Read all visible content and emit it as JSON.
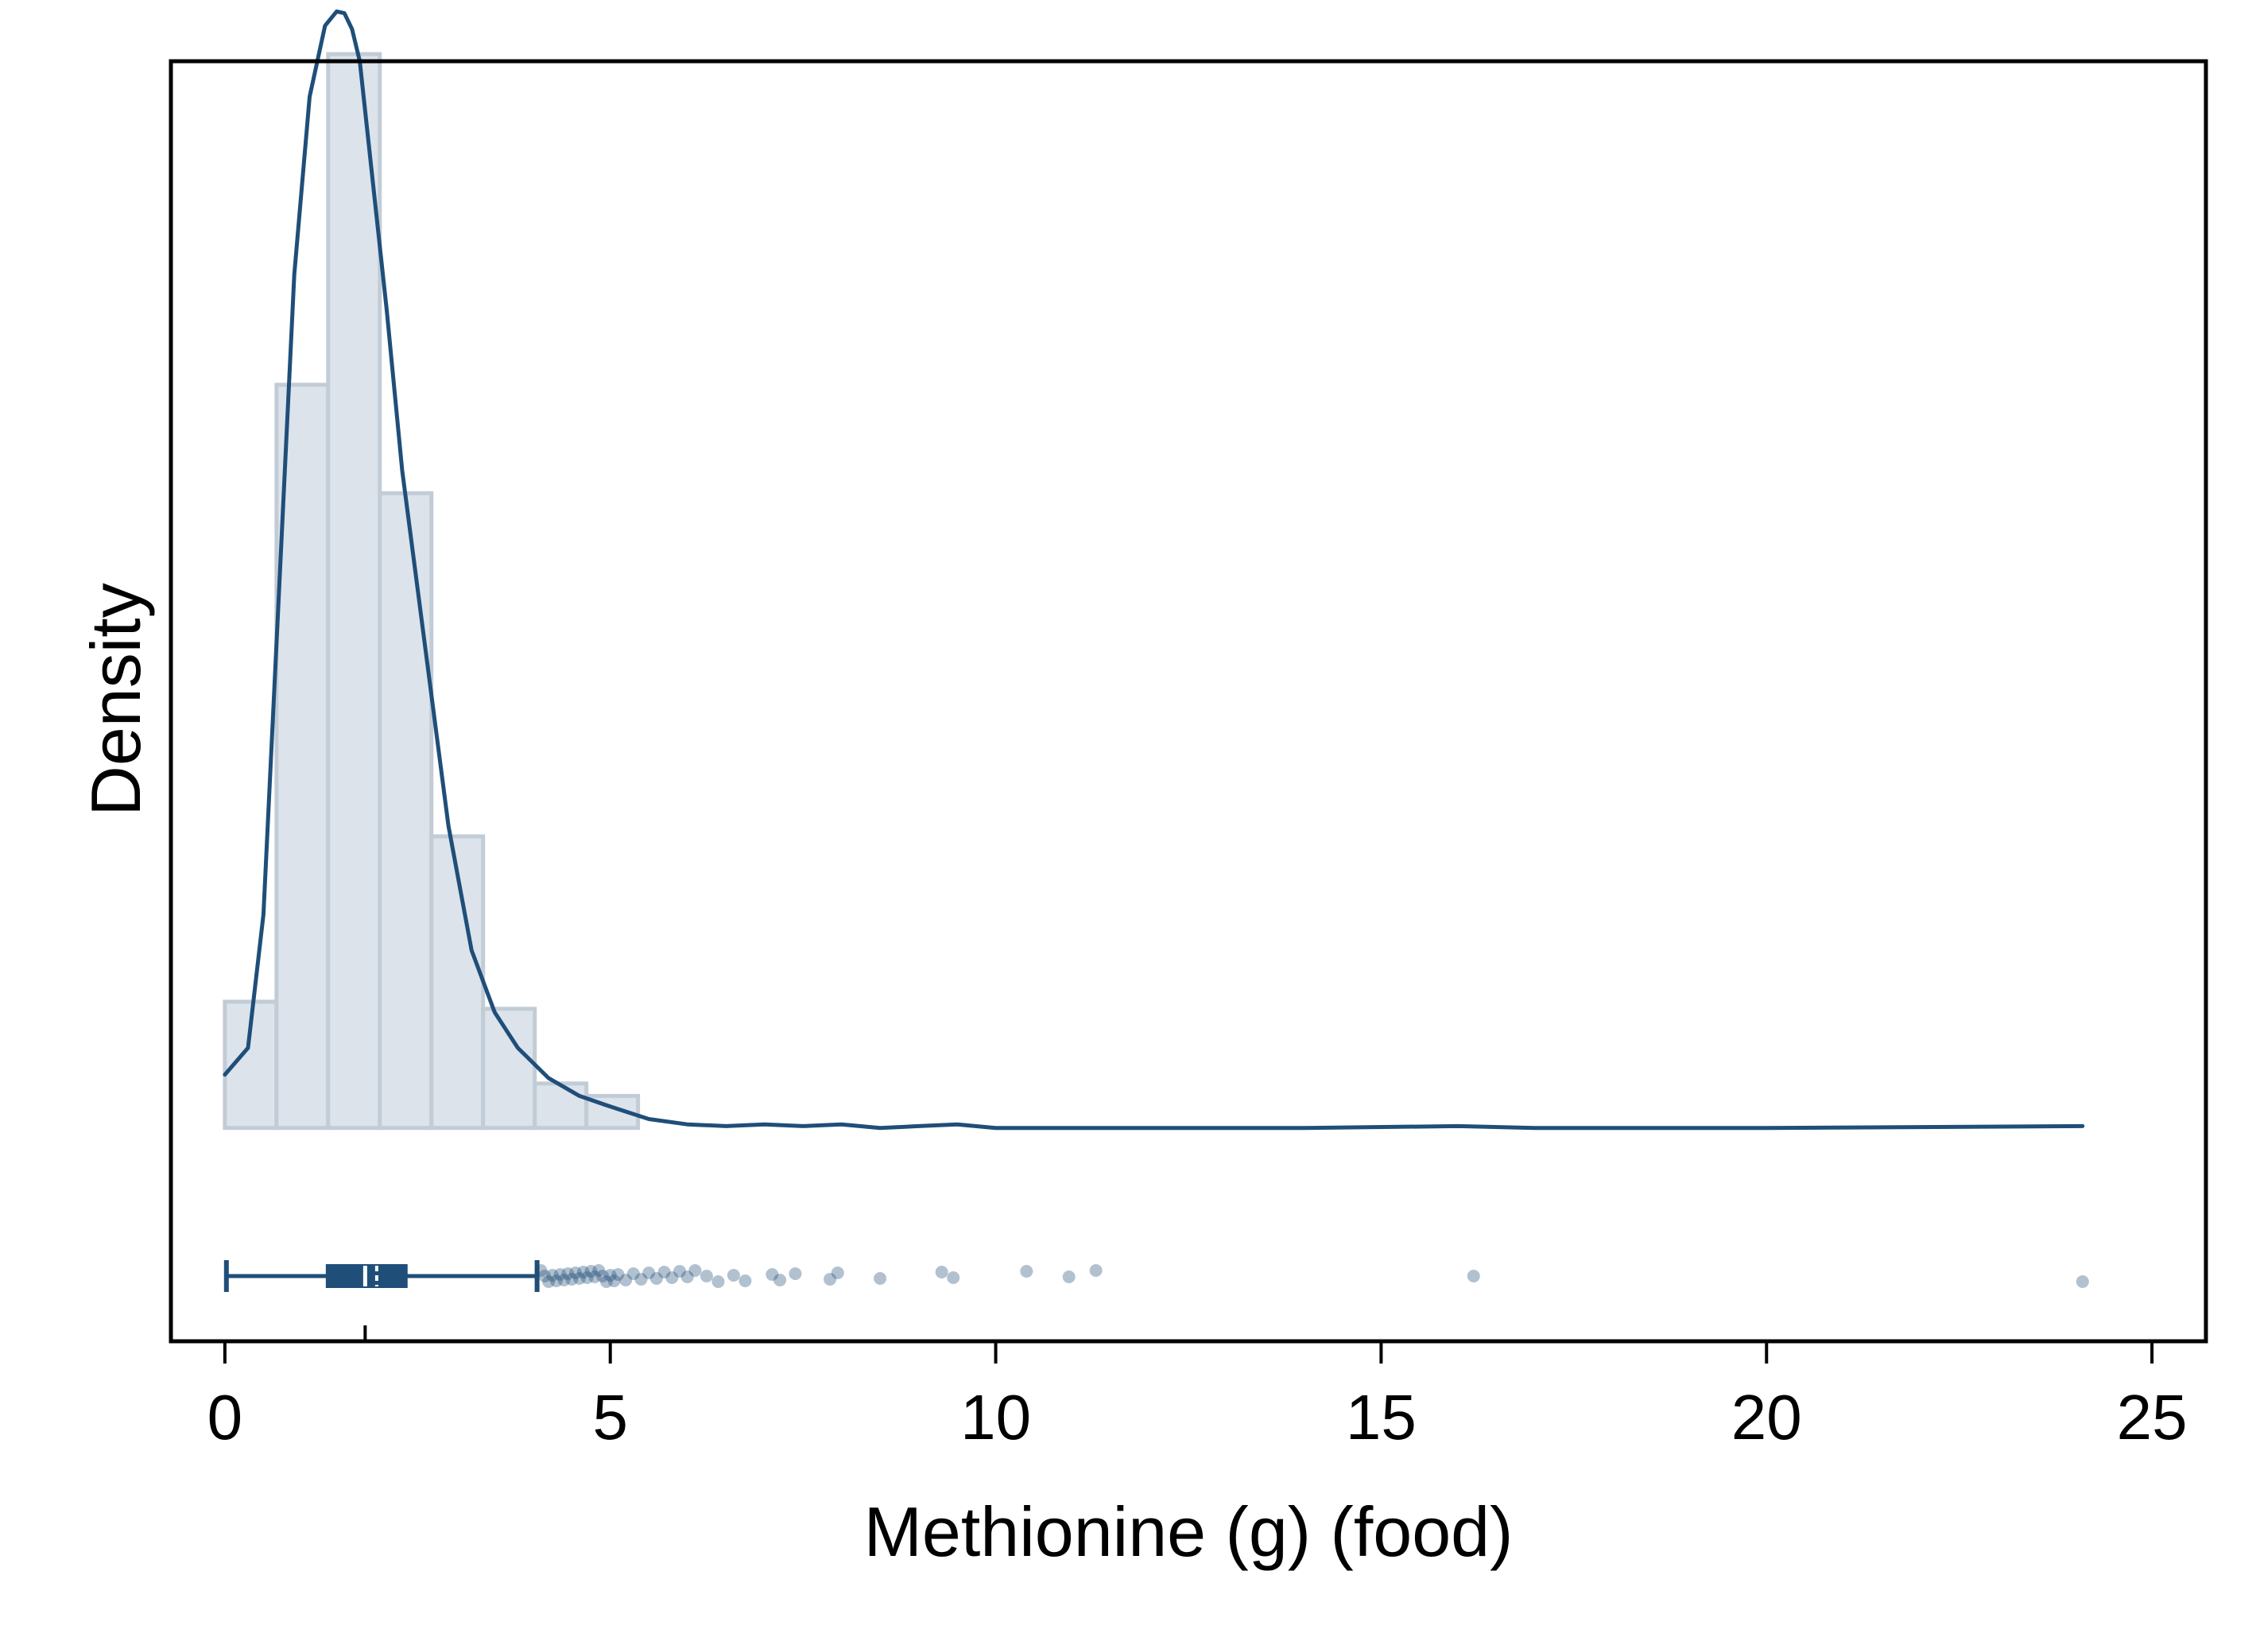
{
  "chart_data": {
    "type": "histogram",
    "xlabel": "Methionine (g) (food)",
    "ylabel": "Density",
    "xlim": [
      -0.7,
      25.7
    ],
    "xticks": [
      0,
      5,
      10,
      15,
      20,
      25
    ],
    "ylim": [
      -0.12,
      0.6
    ],
    "y_tick_labels_shown": false,
    "grid": false,
    "colors": {
      "bar_fill": "#dce3ea",
      "bar_stroke": "#c2ccd6",
      "series": "#1f4e79",
      "plot_background": "#ffffff"
    },
    "histogram": {
      "bin_width": 0.67,
      "bin_start": 0,
      "densities": [
        0.071,
        0.418,
        0.604,
        0.357,
        0.164,
        0.067,
        0.025,
        0.018
      ]
    },
    "kde": {
      "x": [
        0,
        0.3,
        0.5,
        0.7,
        0.9,
        1.1,
        1.3,
        1.45,
        1.55,
        1.65,
        1.75,
        1.9,
        2.1,
        2.3,
        2.6,
        2.9,
        3.2,
        3.5,
        3.8,
        4.2,
        4.6,
        5.0,
        5.5,
        6.0,
        6.5,
        7.0,
        7.5,
        8.0,
        8.5,
        9.0,
        9.5,
        10.0,
        11.0,
        12.0,
        14.0,
        16.0,
        17.0,
        20.0,
        24.1
      ],
      "y": [
        0.03,
        0.045,
        0.12,
        0.3,
        0.48,
        0.58,
        0.62,
        0.628,
        0.627,
        0.618,
        0.6,
        0.54,
        0.46,
        0.37,
        0.27,
        0.17,
        0.1,
        0.065,
        0.045,
        0.028,
        0.018,
        0.012,
        0.005,
        0.002,
        0.001,
        0.002,
        0.001,
        0.002,
        0.0,
        0.001,
        0.002,
        0.0,
        0.0,
        0.0,
        0.0,
        0.001,
        0.0,
        0.0,
        0.001
      ]
    },
    "boxplot": {
      "whisker_low": 0.02,
      "q1": 1.33,
      "median": 1.82,
      "mean": 1.97,
      "q3": 2.35,
      "whisker_high": 4.05,
      "outliers": [
        4.1,
        4.15,
        4.2,
        4.25,
        4.3,
        4.35,
        4.4,
        4.45,
        4.5,
        4.55,
        4.6,
        4.65,
        4.7,
        4.75,
        4.8,
        4.85,
        4.9,
        4.95,
        5.0,
        5.05,
        5.1,
        5.2,
        5.3,
        5.4,
        5.5,
        5.6,
        5.7,
        5.8,
        5.9,
        6.0,
        6.1,
        6.25,
        6.4,
        6.6,
        6.75,
        7.1,
        7.2,
        7.4,
        7.85,
        7.95,
        8.5,
        9.3,
        9.45,
        10.4,
        10.95,
        11.3,
        16.2,
        24.1
      ]
    }
  }
}
